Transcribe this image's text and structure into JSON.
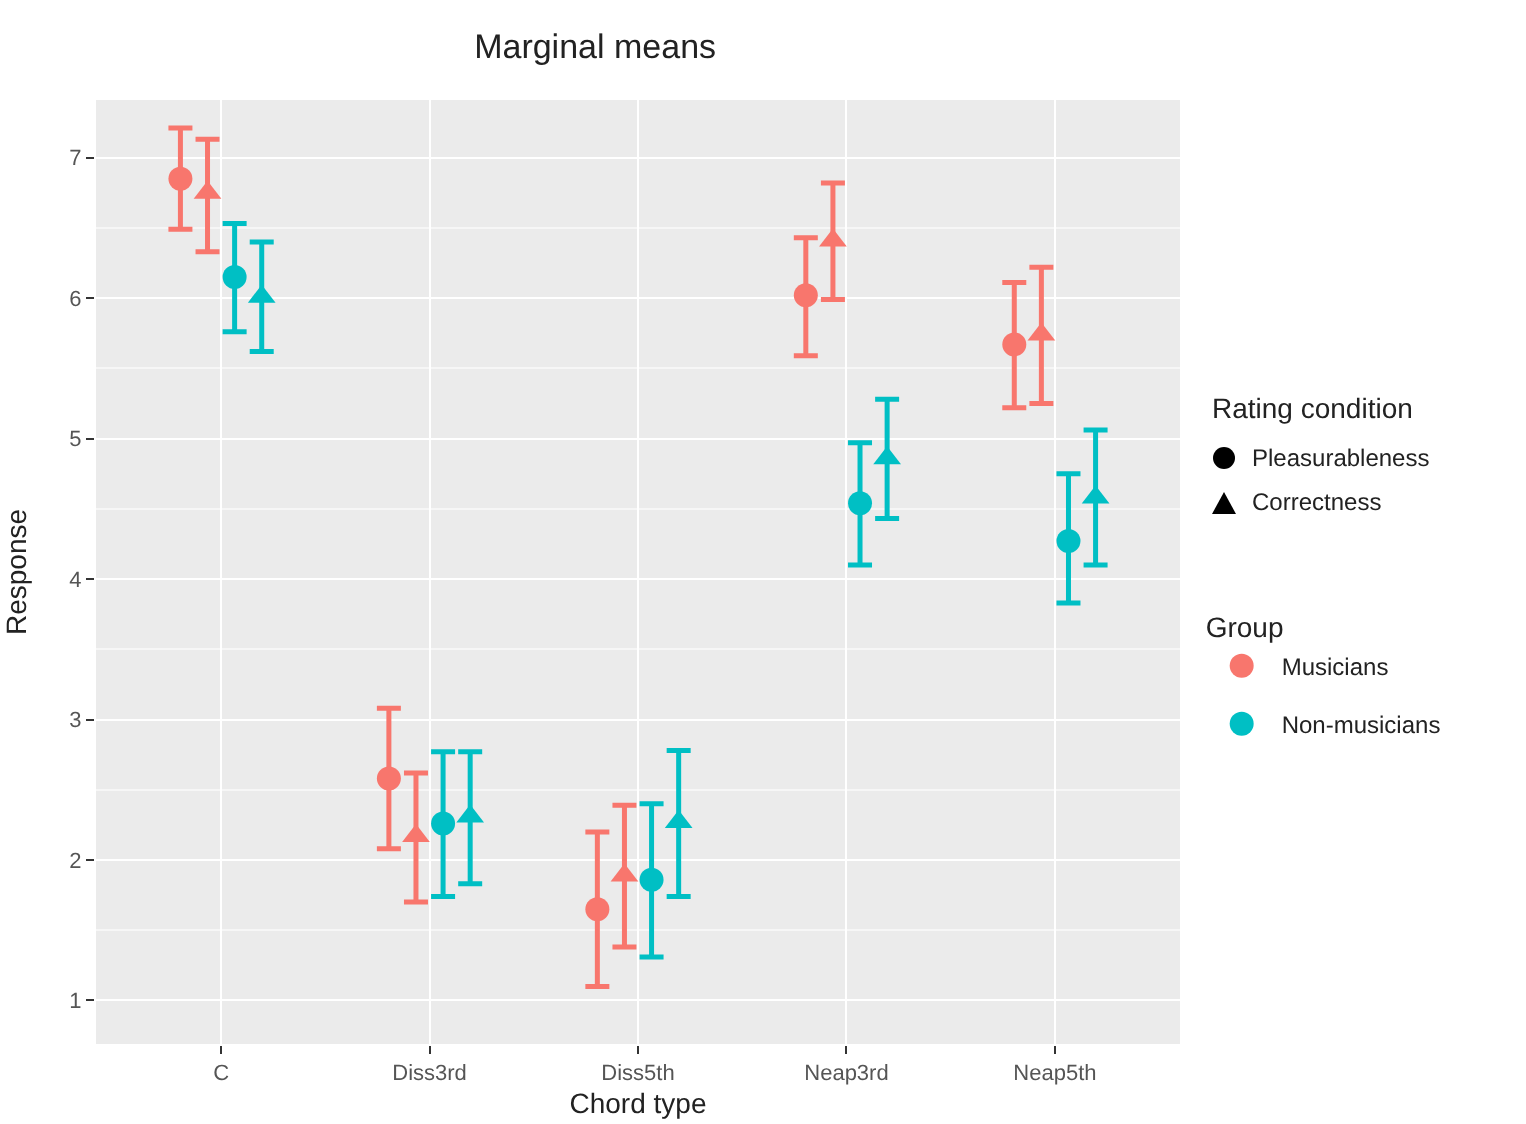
{
  "chart_data": {
    "type": "scatter",
    "title": "Marginal means",
    "xlabel": "Chord type",
    "ylabel": "Response",
    "categories": [
      "C",
      "Diss3rd",
      "Diss5th",
      "Neap3rd",
      "Neap5th"
    ],
    "series": [
      {
        "name": "Musicians",
        "color": "#f8766d",
        "marker": "circle",
        "values": [
          6.85,
          2.58,
          1.65,
          6.02,
          5.67
        ],
        "errors": [
          [
            6.49,
            7.21
          ],
          [
            2.08,
            3.08
          ],
          [
            1.1,
            2.2
          ],
          [
            5.59,
            6.43
          ],
          [
            5.22,
            6.11
          ]
        ]
      },
      {
        "color": "#f8766d",
        "marker": "triangle",
        "values": [
          6.75,
          2.17,
          1.89,
          6.41,
          5.74
        ],
        "errors": [
          [
            6.33,
            7.13
          ],
          [
            1.7,
            2.62
          ],
          [
            1.38,
            2.39
          ],
          [
            5.99,
            6.82
          ],
          [
            5.25,
            6.22
          ]
        ]
      },
      {
        "name": "Non-musicians",
        "color": "#00bfc4",
        "marker": "circle",
        "values": [
          6.15,
          2.26,
          1.86,
          4.54,
          4.27
        ],
        "errors": [
          [
            5.76,
            6.53
          ],
          [
            1.74,
            2.77
          ],
          [
            1.31,
            2.4
          ],
          [
            4.1,
            4.97
          ],
          [
            3.83,
            4.75
          ]
        ]
      },
      {
        "color": "#00bfc4",
        "marker": "triangle",
        "values": [
          6.01,
          2.31,
          2.27,
          4.86,
          4.58
        ],
        "errors": [
          [
            5.62,
            6.4
          ],
          [
            1.83,
            2.77
          ],
          [
            1.74,
            2.78
          ],
          [
            4.43,
            5.28
          ],
          [
            4.1,
            5.06
          ]
        ]
      }
    ],
    "ylim": [
      0.69,
      7.41
    ],
    "yticks": [
      1,
      2,
      3,
      4,
      5,
      6,
      7
    ],
    "grid": true,
    "legend": "right",
    "legend_title": "Group",
    "annotations": [
      "Rating condition",
      "Pleasurableness",
      "Correctness"
    ]
  }
}
